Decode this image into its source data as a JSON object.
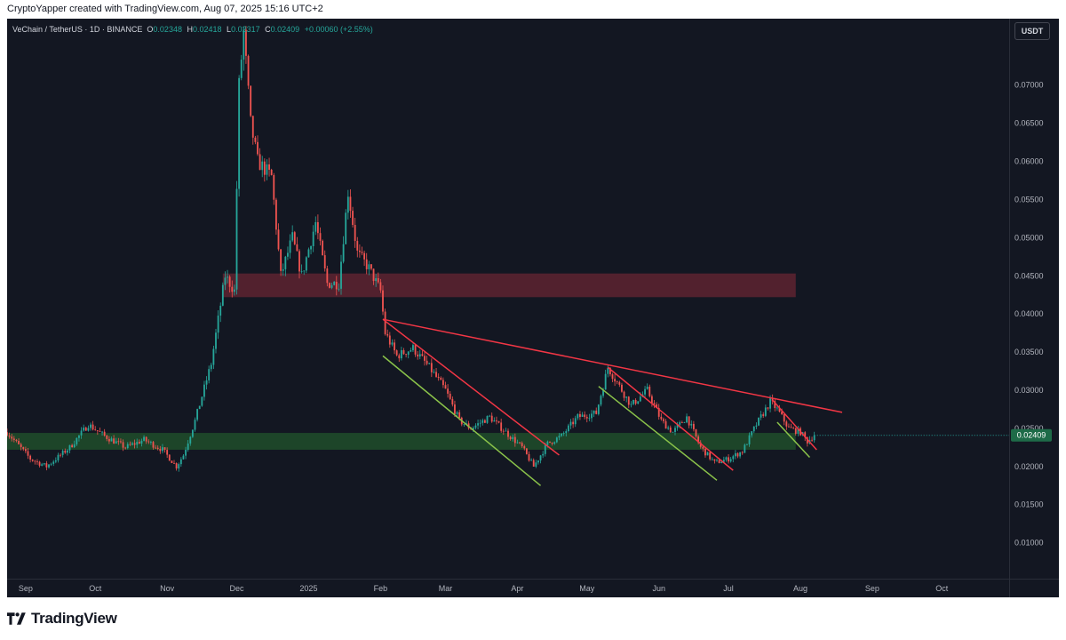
{
  "header": {
    "text": "CryptoYapper created with TradingView.com, Aug 07, 2025 15:16 UTC+2"
  },
  "legend": {
    "symbol": "VeChain / TetherUS · 1D · BINANCE",
    "o_label": "O",
    "o_value": "0.02348",
    "h_label": "H",
    "h_value": "0.02418",
    "l_label": "L",
    "l_value": "0.02317",
    "c_label": "C",
    "c_value": "0.02409",
    "change": "+0.00060 (+2.55%)"
  },
  "currency_badge": "USDT",
  "footer": {
    "brand": "TradingView"
  },
  "colors": {
    "background": "#131722",
    "up": "#26a69a",
    "down": "#ef5350",
    "resistance_zone": "#5a2230",
    "support_zone": "#1f4a2a",
    "red_line": "#f23645",
    "green_line": "#8bc34a",
    "price_label": "#1e6b48"
  },
  "chart_data": {
    "type": "candlestick",
    "x_range": [
      "2024-08-24",
      "2025-10-30"
    ],
    "ylim": [
      0.0053,
      0.0787
    ],
    "x_ticks": [
      {
        "date": "2024-09-01",
        "label": "Sep"
      },
      {
        "date": "2024-10-01",
        "label": "Oct"
      },
      {
        "date": "2024-11-01",
        "label": "Nov"
      },
      {
        "date": "2024-12-01",
        "label": "Dec"
      },
      {
        "date": "2025-01-01",
        "label": "2025"
      },
      {
        "date": "2025-02-01",
        "label": "Feb"
      },
      {
        "date": "2025-03-01",
        "label": "Mar"
      },
      {
        "date": "2025-04-01",
        "label": "Apr"
      },
      {
        "date": "2025-05-01",
        "label": "May"
      },
      {
        "date": "2025-06-01",
        "label": "Jun"
      },
      {
        "date": "2025-07-01",
        "label": "Jul"
      },
      {
        "date": "2025-08-01",
        "label": "Aug"
      },
      {
        "date": "2025-09-01",
        "label": "Sep"
      },
      {
        "date": "2025-10-01",
        "label": "Oct"
      }
    ],
    "y_ticks": [
      {
        "value": 0.07,
        "label": "0.07000"
      },
      {
        "value": 0.065,
        "label": "0.06500"
      },
      {
        "value": 0.06,
        "label": "0.06000"
      },
      {
        "value": 0.055,
        "label": "0.05500"
      },
      {
        "value": 0.05,
        "label": "0.05000"
      },
      {
        "value": 0.045,
        "label": "0.04500"
      },
      {
        "value": 0.04,
        "label": "0.04000"
      },
      {
        "value": 0.035,
        "label": "0.03500"
      },
      {
        "value": 0.03,
        "label": "0.03000"
      },
      {
        "value": 0.025,
        "label": "0.02500"
      },
      {
        "value": 0.02,
        "label": "0.02000"
      },
      {
        "value": 0.015,
        "label": "0.01500"
      },
      {
        "value": 0.01,
        "label": "0.01000"
      }
    ],
    "last_price": {
      "value": 0.02409,
      "label": "0.02409"
    },
    "price_path": [
      [
        "2024-08-24",
        0.0245
      ],
      [
        "2024-09-03",
        0.021
      ],
      [
        "2024-09-10",
        0.02
      ],
      [
        "2024-09-20",
        0.0225
      ],
      [
        "2024-09-28",
        0.0255
      ],
      [
        "2024-10-05",
        0.024
      ],
      [
        "2024-10-14",
        0.0225
      ],
      [
        "2024-10-22",
        0.0235
      ],
      [
        "2024-10-30",
        0.0222
      ],
      [
        "2024-11-05",
        0.02
      ],
      [
        "2024-11-08",
        0.0215
      ],
      [
        "2024-11-13",
        0.026
      ],
      [
        "2024-11-20",
        0.0335
      ],
      [
        "2024-11-26",
        0.045
      ],
      [
        "2024-11-30",
        0.043
      ],
      [
        "2024-12-02",
        0.07
      ],
      [
        "2024-12-04",
        0.077
      ],
      [
        "2024-12-07",
        0.065
      ],
      [
        "2024-12-10",
        0.06
      ],
      [
        "2024-12-16",
        0.058
      ],
      [
        "2024-12-20",
        0.045
      ],
      [
        "2024-12-25",
        0.05
      ],
      [
        "2024-12-29",
        0.045
      ],
      [
        "2025-01-04",
        0.052
      ],
      [
        "2025-01-09",
        0.044
      ],
      [
        "2025-01-14",
        0.044
      ],
      [
        "2025-01-18",
        0.056
      ],
      [
        "2025-01-22",
        0.048
      ],
      [
        "2025-01-27",
        0.046
      ],
      [
        "2025-02-01",
        0.043
      ],
      [
        "2025-02-03",
        0.0375
      ],
      [
        "2025-02-08",
        0.0345
      ],
      [
        "2025-02-15",
        0.0355
      ],
      [
        "2025-02-22",
        0.033
      ],
      [
        "2025-03-01",
        0.03
      ],
      [
        "2025-03-07",
        0.026
      ],
      [
        "2025-03-12",
        0.025
      ],
      [
        "2025-03-20",
        0.0265
      ],
      [
        "2025-03-27",
        0.0245
      ],
      [
        "2025-04-03",
        0.0225
      ],
      [
        "2025-04-08",
        0.02
      ],
      [
        "2025-04-14",
        0.023
      ],
      [
        "2025-04-20",
        0.024
      ],
      [
        "2025-04-27",
        0.0265
      ],
      [
        "2025-05-05",
        0.027
      ],
      [
        "2025-05-10",
        0.033
      ],
      [
        "2025-05-14",
        0.031
      ],
      [
        "2025-05-20",
        0.028
      ],
      [
        "2025-05-27",
        0.03
      ],
      [
        "2025-06-02",
        0.026
      ],
      [
        "2025-06-07",
        0.0245
      ],
      [
        "2025-06-13",
        0.0265
      ],
      [
        "2025-06-19",
        0.0225
      ],
      [
        "2025-06-25",
        0.0205
      ],
      [
        "2025-07-01",
        0.021
      ],
      [
        "2025-07-07",
        0.022
      ],
      [
        "2025-07-13",
        0.0255
      ],
      [
        "2025-07-19",
        0.0285
      ],
      [
        "2025-07-22",
        0.0275
      ],
      [
        "2025-07-27",
        0.025
      ],
      [
        "2025-08-01",
        0.0245
      ],
      [
        "2025-08-04",
        0.0233
      ],
      [
        "2025-08-07",
        0.0241
      ]
    ],
    "zones": [
      {
        "name": "resistance",
        "from": "2024-11-25",
        "to": "2025-07-30",
        "y_low": 0.0422,
        "y_high": 0.0453
      },
      {
        "name": "support",
        "from": "2024-08-24",
        "to": "2025-07-30",
        "y_low": 0.0222,
        "y_high": 0.0244
      }
    ],
    "trendlines": [
      {
        "name": "main-resistance",
        "color": "red",
        "points": [
          [
            "2025-02-02",
            0.0393
          ],
          [
            "2025-08-19",
            0.0271
          ]
        ]
      },
      {
        "name": "downtrend-1-upper",
        "color": "red",
        "points": [
          [
            "2025-02-02",
            0.0393
          ],
          [
            "2025-04-19",
            0.0215
          ]
        ]
      },
      {
        "name": "downtrend-1-lower",
        "color": "green",
        "points": [
          [
            "2025-02-02",
            0.0345
          ],
          [
            "2025-04-11",
            0.0175
          ]
        ]
      },
      {
        "name": "downtrend-2-upper",
        "color": "red",
        "points": [
          [
            "2025-05-10",
            0.033
          ],
          [
            "2025-07-03",
            0.0195
          ]
        ]
      },
      {
        "name": "downtrend-2-lower",
        "color": "green",
        "points": [
          [
            "2025-05-06",
            0.0305
          ],
          [
            "2025-06-26",
            0.0182
          ]
        ]
      },
      {
        "name": "downtrend-3-upper",
        "color": "red",
        "points": [
          [
            "2025-07-20",
            0.0287
          ],
          [
            "2025-08-08",
            0.0222
          ]
        ]
      },
      {
        "name": "downtrend-3-lower",
        "color": "green",
        "points": [
          [
            "2025-07-22",
            0.0258
          ],
          [
            "2025-08-05",
            0.0212
          ]
        ]
      }
    ]
  }
}
